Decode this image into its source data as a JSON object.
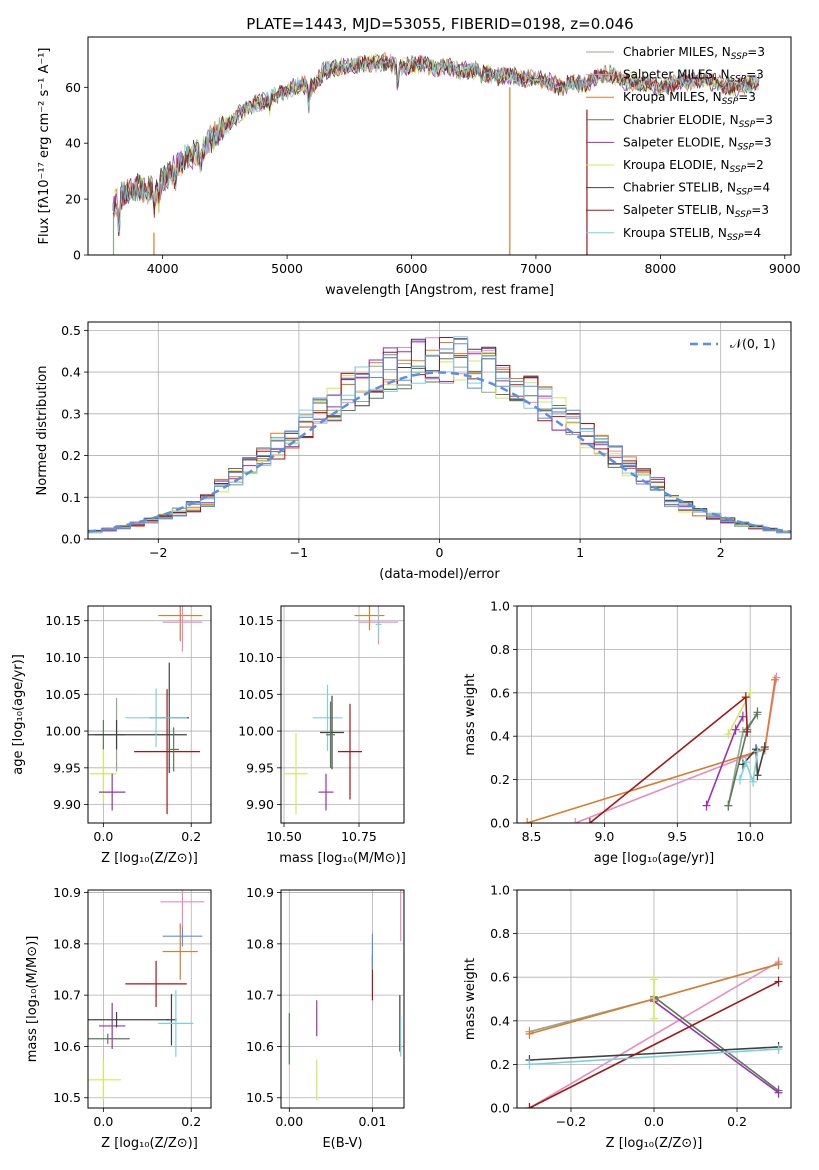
{
  "figure": {
    "title": "PLATE=1443, MJD=53055, FIBERID=0198, z=0.046"
  },
  "colors": {
    "chab_miles": "#8fa88f",
    "salp_miles": "#e88cc0",
    "krou_miles": "#d97c2b",
    "chab_elodie": "#5a7a5a",
    "salp_elodie": "#9b30b0",
    "krou_elodie": "#d4e85a",
    "chab_stelib": "#404040",
    "salp_stelib": "#a01818",
    "krou_stelib": "#7fd0dc",
    "gauss": "#5b8fe0",
    "grid": "#b0b0b0"
  },
  "chart_data": [
    {
      "id": "spectrum",
      "type": "line",
      "xlabel": "wavelength [Angstrom, rest frame]",
      "ylabel": "Flux [fλ10⁻¹⁷ erg cm⁻² s⁻¹ A⁻¹]",
      "xlim": [
        3400,
        9050
      ],
      "ylim": [
        0,
        78
      ],
      "xticks": [
        "4000",
        "5000",
        "6000",
        "7000",
        "8000",
        "9000"
      ],
      "yticks": [
        "0",
        "20",
        "40",
        "60"
      ],
      "grid": false,
      "legend_position": "right",
      "legend": [
        {
          "name": "Chabrier MILES, N",
          "sub": "SSP",
          "suffix": "=3",
          "color": "chab_miles"
        },
        {
          "name": "Salpeter MILES, N",
          "sub": "SSP",
          "suffix": "=3",
          "color": "salp_miles"
        },
        {
          "name": "Kroupa MILES, N",
          "sub": "SSP",
          "suffix": "=3",
          "color": "krou_miles"
        },
        {
          "name": "Chabrier ELODIE, N",
          "sub": "SSP",
          "suffix": "=3",
          "color": "chab_elodie"
        },
        {
          "name": "Salpeter ELODIE, N",
          "sub": "SSP",
          "suffix": "=3",
          "color": "salp_elodie"
        },
        {
          "name": "Kroupa ELODIE, N",
          "sub": "SSP",
          "suffix": "=2",
          "color": "krou_elodie"
        },
        {
          "name": "Chabrier STELIB, N",
          "sub": "SSP",
          "suffix": "=4",
          "color": "chab_stelib"
        },
        {
          "name": "Salpeter STELIB, N",
          "sub": "SSP",
          "suffix": "=3",
          "color": "salp_stelib"
        },
        {
          "name": "Kroupa STELIB, N",
          "sub": "SSP",
          "suffix": "=4",
          "color": "krou_stelib"
        }
      ],
      "continuum": [
        [
          3600,
          18
        ],
        [
          3700,
          22
        ],
        [
          3800,
          24
        ],
        [
          3900,
          23
        ],
        [
          4000,
          27
        ],
        [
          4100,
          31
        ],
        [
          4200,
          35
        ],
        [
          4300,
          37
        ],
        [
          4400,
          42
        ],
        [
          4500,
          46
        ],
        [
          4600,
          50
        ],
        [
          4700,
          53
        ],
        [
          4800,
          55
        ],
        [
          4900,
          57
        ],
        [
          5000,
          59
        ],
        [
          5100,
          61
        ],
        [
          5200,
          60
        ],
        [
          5300,
          66
        ],
        [
          5400,
          67
        ],
        [
          5500,
          68
        ],
        [
          5600,
          68
        ],
        [
          5700,
          69
        ],
        [
          5800,
          69
        ],
        [
          5900,
          67
        ],
        [
          6000,
          68
        ],
        [
          6100,
          68
        ],
        [
          6200,
          67
        ],
        [
          6300,
          67
        ],
        [
          6400,
          66
        ],
        [
          6500,
          66
        ],
        [
          6600,
          65
        ],
        [
          6700,
          64
        ],
        [
          6800,
          64
        ],
        [
          6900,
          63
        ],
        [
          7000,
          63
        ],
        [
          7100,
          62
        ],
        [
          7200,
          60
        ],
        [
          7300,
          62
        ],
        [
          7400,
          61
        ],
        [
          7500,
          64
        ],
        [
          7600,
          65
        ],
        [
          7700,
          62
        ],
        [
          7800,
          62
        ],
        [
          7900,
          61
        ],
        [
          8000,
          60
        ],
        [
          8100,
          61
        ],
        [
          8200,
          62
        ],
        [
          8300,
          63
        ],
        [
          8400,
          62
        ],
        [
          8500,
          61
        ],
        [
          8600,
          60
        ],
        [
          8700,
          61
        ],
        [
          8800,
          62
        ]
      ],
      "dips": [
        [
          3650,
          12
        ],
        [
          3933,
          8
        ],
        [
          3968,
          7
        ],
        [
          4102,
          4
        ],
        [
          4305,
          6
        ],
        [
          4861,
          4
        ],
        [
          5175,
          6
        ],
        [
          5890,
          8
        ],
        [
          6563,
          3
        ]
      ],
      "spikes": [
        {
          "x": 3930,
          "y0": 0,
          "y1": 8,
          "color": "krou_miles"
        },
        {
          "x": 6790,
          "y0": 0,
          "y1": 60,
          "color": "krou_miles"
        },
        {
          "x": 7410,
          "y0": 0,
          "y1": 52,
          "color": "salp_stelib"
        },
        {
          "x": 3605,
          "y0": 0,
          "y1": 14,
          "color": "chab_miles"
        }
      ]
    },
    {
      "id": "residuals",
      "type": "histogram",
      "xlabel": "(data-model)/error",
      "ylabel": "Normed distribution",
      "xlim": [
        -2.5,
        2.5
      ],
      "ylim": [
        0,
        0.52
      ],
      "xticks": [
        "−2",
        "−1",
        "0",
        "1",
        "2"
      ],
      "yticks": [
        "0.0",
        "0.1",
        "0.2",
        "0.3",
        "0.4",
        "0.5"
      ],
      "grid": true,
      "legend_position": "top-right",
      "legend_label": "𝒩(0, 1)",
      "bin_width": 0.1,
      "gaussian": {
        "mu": 0,
        "sigma": 1,
        "style": "dashed"
      },
      "series_colors": [
        "chab_miles",
        "salp_miles",
        "krou_miles",
        "chab_elodie",
        "salp_elodie",
        "krou_elodie",
        "chab_stelib",
        "salp_stelib",
        "krou_stelib",
        "gauss"
      ]
    },
    {
      "id": "age_vs_Z",
      "type": "errorbar",
      "xlabel": "Z [log₁₀(Z/Z⊙)]",
      "ylabel": "age  [log₁₀(age/yr)]",
      "xlim": [
        -0.035,
        0.245
      ],
      "ylim": [
        9.875,
        10.17
      ],
      "xticks": [
        "0.0",
        "0.2"
      ],
      "xtick_values": [
        0.0,
        0.2
      ],
      "yticks": [
        "9.90",
        "9.95",
        "10.00",
        "10.05",
        "10.10",
        "10.15"
      ],
      "ytick_values": [
        9.9,
        9.95,
        10.0,
        10.05,
        10.1,
        10.15
      ],
      "grid": true,
      "points": [
        {
          "x": 0.0,
          "y": 9.942,
          "xerr": 0.03,
          "yerr": 0.04,
          "color": "krou_elodie"
        },
        {
          "x": 0.0,
          "y": 9.995,
          "xerr": 0.02,
          "yerr": 0.02,
          "color": "chab_elodie"
        },
        {
          "x": 0.02,
          "y": 9.917,
          "xerr": 0.03,
          "yerr": 0.025,
          "color": "salp_elodie"
        },
        {
          "x": 0.03,
          "y": 9.995,
          "xerr": 0.02,
          "yerr": 0.05,
          "color": "chab_miles"
        },
        {
          "x": 0.03,
          "y": 9.995,
          "xerr": 0.16,
          "yerr": 0.02,
          "color": "chab_stelib"
        },
        {
          "x": 0.145,
          "y": 9.972,
          "xerr": 0.075,
          "yerr": 0.085,
          "color": "salp_stelib"
        },
        {
          "x": 0.15,
          "y": 10.018,
          "xerr": 0.045,
          "yerr": 0.075,
          "color": "chab_stelib"
        },
        {
          "x": 0.12,
          "y": 10.018,
          "xerr": 0.07,
          "yerr": 0.04,
          "color": "krou_stelib"
        },
        {
          "x": 0.175,
          "y": 10.157,
          "xerr": 0.05,
          "yerr": 0.035,
          "color": "krou_miles"
        },
        {
          "x": 0.18,
          "y": 10.148,
          "xerr": 0.045,
          "yerr": 0.04,
          "color": "salp_miles"
        },
        {
          "x": 0.16,
          "y": 9.975,
          "xerr": 0.012,
          "yerr": 0.03,
          "color": "chab_elodie"
        }
      ]
    },
    {
      "id": "age_vs_mass",
      "type": "errorbar",
      "xlabel": "mass [log₁₀(M/M⊙)]",
      "ylabel": "",
      "xlim": [
        10.49,
        10.9
      ],
      "ylim": [
        9.875,
        10.17
      ],
      "xticks": [
        "10.50",
        "10.75"
      ],
      "xtick_values": [
        10.5,
        10.75
      ],
      "yticks": [
        "9.90",
        "9.95",
        "10.00",
        "10.05",
        "10.10",
        "10.15"
      ],
      "ytick_values": [
        9.9,
        9.95,
        10.0,
        10.05,
        10.1,
        10.15
      ],
      "grid": true,
      "points": [
        {
          "x": 10.54,
          "y": 9.942,
          "xerr": 0.04,
          "yerr": 0.055,
          "color": "krou_elodie"
        },
        {
          "x": 10.64,
          "y": 9.917,
          "xerr": 0.025,
          "yerr": 0.025,
          "color": "salp_elodie"
        },
        {
          "x": 10.645,
          "y": 10.018,
          "xerr": 0.05,
          "yerr": 0.045,
          "color": "krou_stelib"
        },
        {
          "x": 10.66,
          "y": 9.998,
          "xerr": 0.04,
          "yerr": 0.05,
          "color": "chab_stelib"
        },
        {
          "x": 10.655,
          "y": 9.995,
          "xerr": 0.015,
          "yerr": 0.045,
          "color": "chab_elodie"
        },
        {
          "x": 10.72,
          "y": 9.972,
          "xerr": 0.04,
          "yerr": 0.065,
          "color": "salp_stelib"
        },
        {
          "x": 10.785,
          "y": 10.157,
          "xerr": 0.05,
          "yerr": 0.02,
          "color": "krou_miles"
        },
        {
          "x": 10.815,
          "y": 10.148,
          "xerr": 0.065,
          "yerr": 0.03,
          "color": "salp_miles"
        },
        {
          "x": 10.815,
          "y": 10.145,
          "xerr": 0.01,
          "yerr": 0.02,
          "color": "krou_stelib"
        }
      ]
    },
    {
      "id": "weight_vs_age",
      "type": "line",
      "xlabel": "age  [log₁₀(age/yr)]",
      "ylabel": "mass weight",
      "xlim": [
        8.4,
        10.28
      ],
      "ylim": [
        0,
        1.0
      ],
      "xticks": [
        "8.5",
        "9.0",
        "9.5",
        "10.0"
      ],
      "xtick_values": [
        8.5,
        9.0,
        9.5,
        10.0
      ],
      "yticks": [
        "0.0",
        "0.2",
        "0.4",
        "0.6",
        "0.8",
        "1.0"
      ],
      "ytick_values": [
        0,
        0.2,
        0.4,
        0.6,
        0.8,
        1.0
      ],
      "grid": true,
      "series": [
        {
          "color": "chab_miles",
          "x": [
            9.85,
            9.95,
            10.05
          ],
          "y": [
            0.08,
            0.42,
            0.5
          ]
        },
        {
          "color": "salp_miles",
          "x": [
            8.8,
            10.1,
            10.18
          ],
          "y": [
            0.0,
            0.34,
            0.67
          ]
        },
        {
          "color": "krou_miles",
          "x": [
            8.47,
            10.1,
            10.17
          ],
          "y": [
            0.0,
            0.34,
            0.66
          ]
        },
        {
          "color": "chab_elodie",
          "x": [
            9.85,
            9.98,
            10.05
          ],
          "y": [
            0.08,
            0.43,
            0.51
          ]
        },
        {
          "color": "salp_elodie",
          "x": [
            9.7,
            9.9,
            9.95
          ],
          "y": [
            0.08,
            0.43,
            0.49
          ]
        },
        {
          "color": "krou_elodie",
          "x": [
            9.85,
            10.0
          ],
          "y": [
            0.41,
            0.6
          ]
        },
        {
          "color": "chab_stelib",
          "x": [
            9.95,
            10.04,
            10.05,
            10.1
          ],
          "y": [
            0.27,
            0.34,
            0.22,
            0.35
          ]
        },
        {
          "color": "salp_stelib",
          "x": [
            8.9,
            9.97,
            9.98
          ],
          "y": [
            0.0,
            0.58,
            0.42
          ]
        },
        {
          "color": "krou_stelib",
          "x": [
            9.93,
            9.97,
            10.02,
            10.05
          ],
          "y": [
            0.2,
            0.28,
            0.19,
            0.33
          ]
        }
      ]
    },
    {
      "id": "mass_vs_Z",
      "type": "errorbar",
      "xlabel": "Z [log₁₀(Z/Z⊙)]",
      "ylabel": "mass [log₁₀(M/M⊙)]",
      "xlim": [
        -0.035,
        0.245
      ],
      "ylim": [
        10.48,
        10.905
      ],
      "xticks": [
        "0.0",
        "0.2"
      ],
      "xtick_values": [
        0.0,
        0.2
      ],
      "yticks": [
        "10.5",
        "10.6",
        "10.7",
        "10.8",
        "10.9"
      ],
      "ytick_values": [
        10.5,
        10.6,
        10.7,
        10.8,
        10.9
      ],
      "grid": true,
      "points": [
        {
          "x": 0.0,
          "y": 10.535,
          "xerr": 0.04,
          "yerr": 0.04,
          "color": "krou_elodie"
        },
        {
          "x": 0.01,
          "y": 10.615,
          "xerr": 0.05,
          "yerr": 0.01,
          "color": "chab_elodie"
        },
        {
          "x": 0.02,
          "y": 10.64,
          "xerr": 0.03,
          "yerr": 0.045,
          "color": "salp_elodie"
        },
        {
          "x": 0.03,
          "y": 10.652,
          "xerr": 0.12,
          "yerr": 0.015,
          "color": "chab_stelib"
        },
        {
          "x": 0.12,
          "y": 10.722,
          "xerr": 0.07,
          "yerr": 0.045,
          "color": "salp_stelib"
        },
        {
          "x": 0.155,
          "y": 10.652,
          "xerr": 0.012,
          "yerr": 0.05,
          "color": "chab_stelib"
        },
        {
          "x": 0.165,
          "y": 10.645,
          "xerr": 0.04,
          "yerr": 0.065,
          "color": "krou_stelib"
        },
        {
          "x": 0.175,
          "y": 10.785,
          "xerr": 0.04,
          "yerr": 0.055,
          "color": "krou_miles"
        },
        {
          "x": 0.18,
          "y": 10.815,
          "xerr": 0.045,
          "yerr": 0.02,
          "color": "gauss"
        },
        {
          "x": 0.18,
          "y": 10.882,
          "xerr": 0.05,
          "yerr": 0.05,
          "color": "salp_miles"
        }
      ]
    },
    {
      "id": "mass_vs_ebv",
      "type": "errorbar",
      "xlabel": "E(B-V)",
      "ylabel": "",
      "xlim": [
        -0.001,
        0.0138
      ],
      "ylim": [
        10.48,
        10.905
      ],
      "xticks": [
        "0.00",
        "0.01"
      ],
      "xtick_values": [
        0.0,
        0.01
      ],
      "yticks": [
        "10.5",
        "10.6",
        "10.7",
        "10.8",
        "10.9"
      ],
      "ytick_values": [
        10.5,
        10.6,
        10.7,
        10.8,
        10.9
      ],
      "grid": true,
      "points": [
        {
          "x": 0.0,
          "y": 10.615,
          "xerr": 0,
          "yerr": 0.05,
          "color": "chab_elodie"
        },
        {
          "x": 0.0033,
          "y": 10.535,
          "xerr": 0,
          "yerr": 0.04,
          "color": "krou_elodie"
        },
        {
          "x": 0.0033,
          "y": 10.655,
          "xerr": 0,
          "yerr": 0.035,
          "color": "salp_elodie"
        },
        {
          "x": 0.01,
          "y": 10.735,
          "xerr": 0,
          "yerr": 0.045,
          "color": "salp_stelib"
        },
        {
          "x": 0.01,
          "y": 10.785,
          "xerr": 0,
          "yerr": 0.035,
          "color": "gauss"
        },
        {
          "x": 0.0133,
          "y": 10.645,
          "xerr": 0,
          "yerr": 0.055,
          "color": "chab_stelib"
        },
        {
          "x": 0.0134,
          "y": 10.62,
          "xerr": 0,
          "yerr": 0.04,
          "color": "krou_stelib"
        },
        {
          "x": 0.0134,
          "y": 10.855,
          "xerr": 0,
          "yerr": 0.05,
          "color": "salp_miles"
        }
      ]
    },
    {
      "id": "weight_vs_Z",
      "type": "line",
      "xlabel": "Z [log₁₀(Z/Z⊙)]",
      "ylabel": "mass weight",
      "xlim": [
        -0.33,
        0.33
      ],
      "ylim": [
        0,
        1.0
      ],
      "xticks": [
        "−0.2",
        "0.0",
        "0.2"
      ],
      "xtick_values": [
        -0.2,
        0.0,
        0.2
      ],
      "yticks": [
        "0.0",
        "0.2",
        "0.4",
        "0.6",
        "0.8",
        "1.0"
      ],
      "ytick_values": [
        0,
        0.2,
        0.4,
        0.6,
        0.8,
        1.0
      ],
      "grid": true,
      "series": [
        {
          "color": "chab_miles",
          "x": [
            -0.3,
            0.0,
            0.3
          ],
          "y": [
            0.35,
            0.5,
            0.66
          ]
        },
        {
          "color": "salp_miles",
          "x": [
            -0.3,
            0.3
          ],
          "y": [
            0.0,
            0.67
          ]
        },
        {
          "color": "krou_miles",
          "x": [
            -0.3,
            0.0,
            0.3
          ],
          "y": [
            0.34,
            0.5,
            0.66
          ]
        },
        {
          "color": "chab_elodie",
          "x": [
            0.0,
            0.3
          ],
          "y": [
            0.51,
            0.08
          ]
        },
        {
          "color": "salp_elodie",
          "x": [
            0.0,
            0.3
          ],
          "y": [
            0.49,
            0.07
          ]
        },
        {
          "color": "krou_elodie",
          "x": [
            0.0,
            0.0
          ],
          "y": [
            0.41,
            0.59
          ]
        },
        {
          "color": "chab_stelib",
          "x": [
            -0.3,
            0.3
          ],
          "y": [
            0.22,
            0.28
          ]
        },
        {
          "color": "salp_stelib",
          "x": [
            -0.3,
            0.3
          ],
          "y": [
            0.0,
            0.58
          ]
        },
        {
          "color": "krou_stelib",
          "x": [
            -0.3,
            0.3
          ],
          "y": [
            0.2,
            0.27
          ]
        }
      ]
    }
  ]
}
